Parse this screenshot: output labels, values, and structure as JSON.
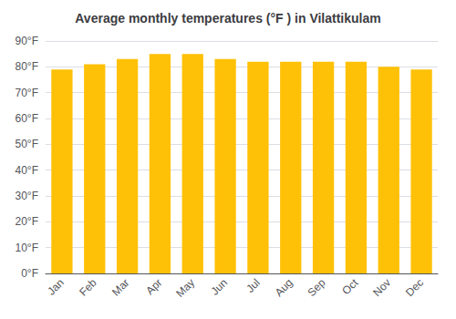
{
  "chart_data": {
    "type": "bar",
    "title": "Average monthly temperatures (°F ) in Vilattikulam",
    "categories": [
      "Jan",
      "Feb",
      "Mar",
      "Apr",
      "May",
      "Jun",
      "Jul",
      "Aug",
      "Sep",
      "Oct",
      "Nov",
      "Dec"
    ],
    "values": [
      79,
      81,
      83,
      85,
      85,
      83,
      82,
      82,
      82,
      82,
      80,
      79
    ],
    "color": "#FFC107",
    "ylim": [
      0,
      90
    ],
    "yticks": [
      {
        "value": 0,
        "label": "0°F"
      },
      {
        "value": 10,
        "label": "10°F"
      },
      {
        "value": 20,
        "label": "20°F"
      },
      {
        "value": 30,
        "label": "30°F"
      },
      {
        "value": 40,
        "label": "40°F"
      },
      {
        "value": 50,
        "label": "50°F"
      },
      {
        "value": 60,
        "label": "60°F"
      },
      {
        "value": 70,
        "label": "70°F"
      },
      {
        "value": 80,
        "label": "80°F"
      },
      {
        "value": 90,
        "label": "90°F"
      }
    ],
    "grid": true
  }
}
